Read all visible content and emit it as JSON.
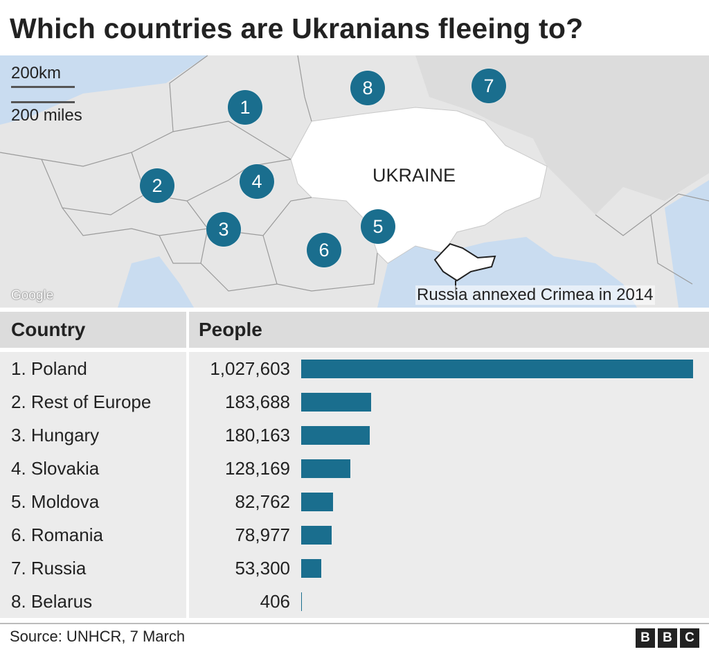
{
  "title": "Which countries are Ukranians fleeing to?",
  "map": {
    "scale_km": "200km",
    "scale_miles": "200 miles",
    "google": "Google",
    "ukraine_label": "UKRAINE",
    "crimea_note": "Russia annexed Crimea in 2014",
    "markers": [
      "1",
      "2",
      "3",
      "4",
      "5",
      "6",
      "7",
      "8"
    ],
    "colors": {
      "land": "#e6e6e6",
      "ukraine": "#ffffff",
      "sea": "#c9dcf0",
      "marker": "#1a6e8e"
    }
  },
  "table": {
    "col_country": "Country",
    "col_people": "People"
  },
  "chart_data": {
    "type": "bar",
    "orientation": "horizontal",
    "categories": [
      "1. Poland",
      "2. Rest of Europe",
      "3. Hungary",
      "4. Slovakia",
      "5. Moldova",
      "6. Romania",
      "7. Russia",
      "8. Belarus"
    ],
    "labels": [
      "1,027,603",
      "183,688",
      "180,163",
      "128,169",
      "82,762",
      "78,977",
      "53,300",
      "406"
    ],
    "values": [
      1027603,
      183688,
      180163,
      128169,
      82762,
      78977,
      53300,
      406
    ],
    "bar_color": "#1a6e8e"
  },
  "footer": {
    "source": "Source: UNHCR, 7 March",
    "logo": [
      "B",
      "B",
      "C"
    ]
  }
}
